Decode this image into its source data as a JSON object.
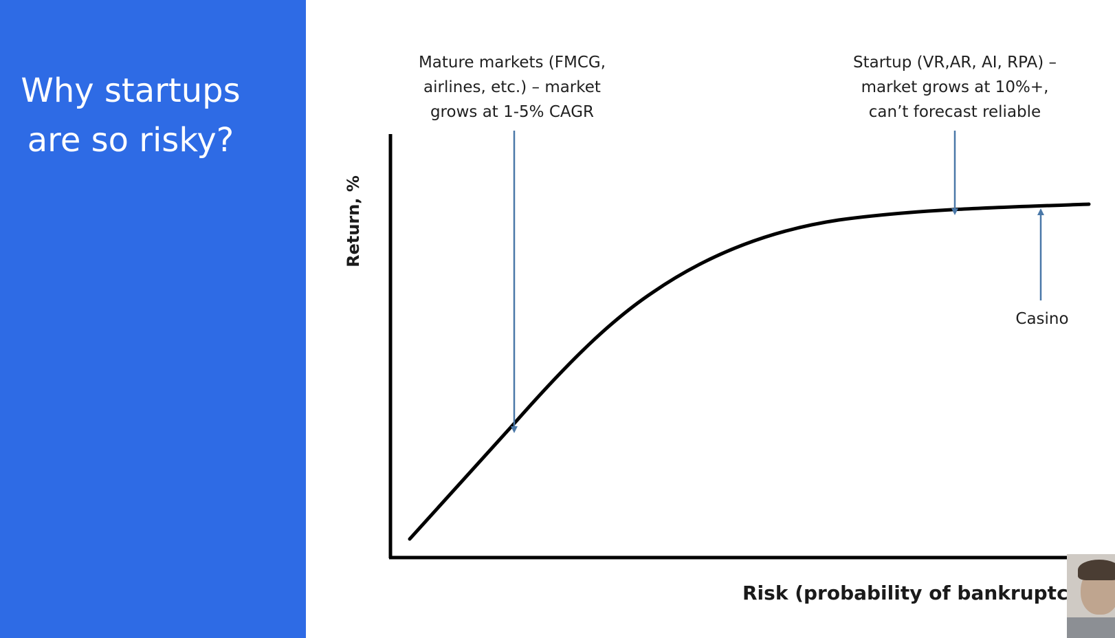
{
  "slide": {
    "title_lines": [
      "Why startups",
      "are so risky?"
    ]
  },
  "chart_data": {
    "type": "line",
    "xlabel": "Risk (probability of bankruptcy)",
    "ylabel": "Return, %",
    "curve_shape": "concave S-curve: rises roughly linearly at low risk, then flattens into a plateau at high risk",
    "annotations": [
      {
        "lines": [
          "Mature markets (FMCG,",
          "airlines, etc.) – market",
          "grows at 1-5% CAGR"
        ],
        "arrow": "down"
      },
      {
        "lines": [
          "Startup (VR,AR, AI, RPA) –",
          "market grows at 10%+,",
          "can’t forecast reliable"
        ],
        "arrow": "down"
      },
      {
        "lines": [
          "Casino"
        ],
        "arrow": "up"
      }
    ]
  },
  "colors": {
    "side_panel": "#2e6be5",
    "arrow": "#4a78a8",
    "curve": "#000000"
  },
  "icons": {
    "webcam": "presenter-webcam-thumbnail"
  }
}
